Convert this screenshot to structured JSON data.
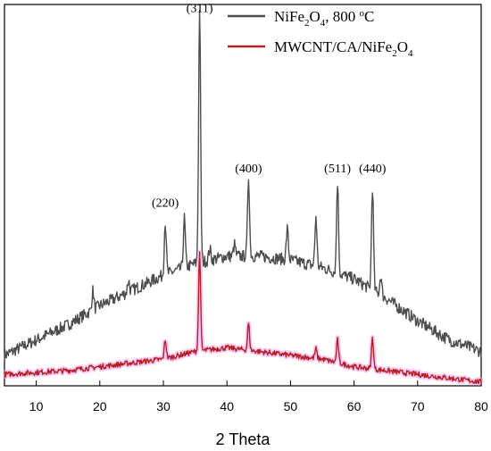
{
  "chart_data": {
    "type": "line",
    "xlabel": "2 Theta",
    "ylabel": "",
    "xlim": [
      5,
      80
    ],
    "ylim": [
      0,
      100
    ],
    "xticks": [
      10,
      20,
      30,
      40,
      50,
      60,
      70,
      80
    ],
    "x_tick_labels": [
      "10",
      "20",
      "30",
      "40",
      "50",
      "60",
      "70",
      "80"
    ],
    "grid": false,
    "legend_position": "top-right",
    "series": [
      {
        "name": "NiFe2O4, 800 oC",
        "name_parts": {
          "a": "NiFe",
          "b": "2",
          "c": "O",
          "d": "4",
          "e": ", 800 ",
          "f": "o",
          "g": "C"
        },
        "color": "#4d4d4d",
        "baseline": [
          [
            5,
            8
          ],
          [
            10,
            12
          ],
          [
            15,
            16
          ],
          [
            20,
            21
          ],
          [
            25,
            25
          ],
          [
            30,
            29
          ],
          [
            35,
            32
          ],
          [
            40,
            34
          ],
          [
            45,
            34
          ],
          [
            50,
            33
          ],
          [
            55,
            31
          ],
          [
            60,
            28
          ],
          [
            65,
            23
          ],
          [
            70,
            17
          ],
          [
            75,
            12
          ],
          [
            80,
            9
          ]
        ],
        "peaks": [
          [
            18.9,
            5
          ],
          [
            24.5,
            3
          ],
          [
            30.3,
            14
          ],
          [
            33.3,
            13
          ],
          [
            35.7,
            67
          ],
          [
            37.3,
            3
          ],
          [
            41.2,
            3
          ],
          [
            43.4,
            21
          ],
          [
            49.5,
            8
          ],
          [
            54.0,
            13
          ],
          [
            57.4,
            24
          ],
          [
            62.9,
            27
          ],
          [
            64.2,
            5
          ]
        ],
        "noise": 1.6
      },
      {
        "name": "MWCNT/CA/NiFe2O4",
        "name_parts": {
          "a": "MWCNT/CA/NiFe",
          "b": "2",
          "c": "O",
          "d": "4"
        },
        "color": "#b22222",
        "highlight": "#ff99ee",
        "baseline": [
          [
            5,
            3
          ],
          [
            15,
            4
          ],
          [
            25,
            6
          ],
          [
            30,
            7
          ],
          [
            35,
            9
          ],
          [
            40,
            10
          ],
          [
            45,
            9
          ],
          [
            50,
            8
          ],
          [
            55,
            7
          ],
          [
            60,
            5
          ],
          [
            65,
            4
          ],
          [
            70,
            3
          ],
          [
            75,
            2
          ],
          [
            80,
            1
          ]
        ],
        "peaks": [
          [
            30.3,
            5
          ],
          [
            35.7,
            26
          ],
          [
            43.4,
            7
          ],
          [
            54.0,
            2.5
          ],
          [
            57.4,
            6
          ],
          [
            62.9,
            8
          ]
        ],
        "noise": 0.7
      }
    ],
    "annotations": [
      {
        "text": "(311)",
        "x": 35.7,
        "y": 98
      },
      {
        "text": "(220)",
        "x": 30.3,
        "y": 47
      },
      {
        "text": "(400)",
        "x": 43.4,
        "y": 56
      },
      {
        "text": "(511)",
        "x": 57.4,
        "y": 56
      },
      {
        "text": "(440)",
        "x": 62.9,
        "y": 56
      }
    ]
  }
}
